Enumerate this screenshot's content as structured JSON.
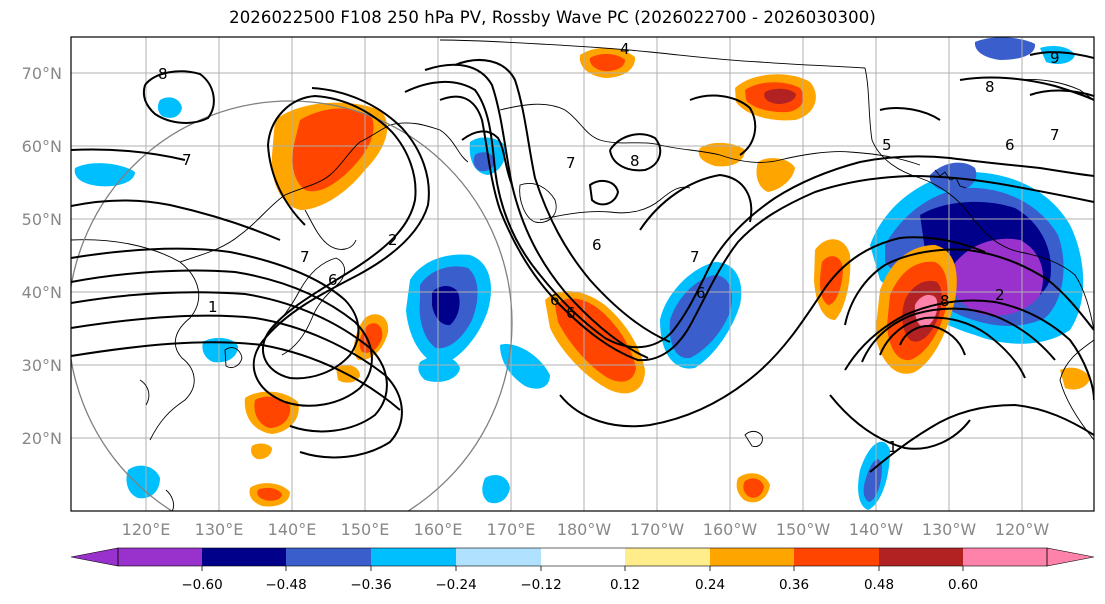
{
  "title": "2026022500 F108 250 hPa PV, Rossby Wave PC (2026022700 - 2026030300)",
  "lat_labels": [
    "70°N",
    "60°N",
    "50°N",
    "40°N",
    "30°N",
    "20°N"
  ],
  "lon_labels": [
    "120°E",
    "130°E",
    "140°E",
    "150°E",
    "160°E",
    "170°E",
    "180°W",
    "170°W",
    "160°W",
    "150°W",
    "140°W",
    "130°W",
    "120°W"
  ],
  "colorbar": {
    "colors": [
      "#9932cc",
      "#00008b",
      "#3a5fcd",
      "#00bfff",
      "#b0e2ff",
      "#ffffff",
      "#ffec8b",
      "#ffa500",
      "#ff4500",
      "#b22222",
      "#ff82ab"
    ],
    "tick_labels": [
      "−0.60",
      "−0.48",
      "−0.36",
      "−0.24",
      "−0.12",
      "0.12",
      "0.24",
      "0.36",
      "0.48",
      "0.60"
    ]
  },
  "contour_labels": [
    "4",
    "8",
    "9",
    "8",
    "7",
    "7",
    "7",
    "5",
    "6",
    "7",
    "8",
    "6",
    "6",
    "7",
    "6",
    "6",
    "1",
    "8",
    "2",
    "6",
    "2",
    "1"
  ]
}
